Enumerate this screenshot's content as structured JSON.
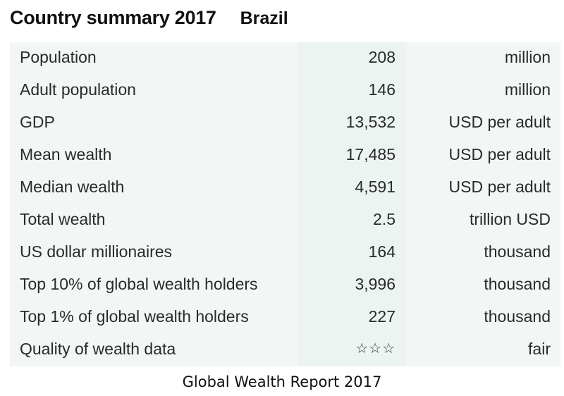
{
  "header": {
    "title": "Country summary 2017",
    "country": "Brazil"
  },
  "rows": [
    {
      "label": "Population",
      "value": "208",
      "unit": "million"
    },
    {
      "label": "Adult population",
      "value": "146",
      "unit": "million"
    },
    {
      "label": "GDP",
      "value": "13,532",
      "unit": "USD per adult"
    },
    {
      "label": "Mean wealth",
      "value": "17,485",
      "unit": "USD per adult"
    },
    {
      "label": "Median wealth",
      "value": "4,591",
      "unit": "USD per adult"
    },
    {
      "label": "Total wealth",
      "value": "2.5",
      "unit": "trillion USD"
    },
    {
      "label": "US dollar millionaires",
      "value": "164",
      "unit": "thousand"
    },
    {
      "label": "Top 10% of global wealth holders",
      "value": "3,996",
      "unit": "thousand"
    },
    {
      "label": "Top 1% of global wealth holders",
      "value": "227",
      "unit": "thousand"
    },
    {
      "label": "Quality of wealth data",
      "value": "☆☆☆",
      "unit": "fair"
    }
  ],
  "footer": {
    "source": "Global Wealth Report 2017"
  }
}
